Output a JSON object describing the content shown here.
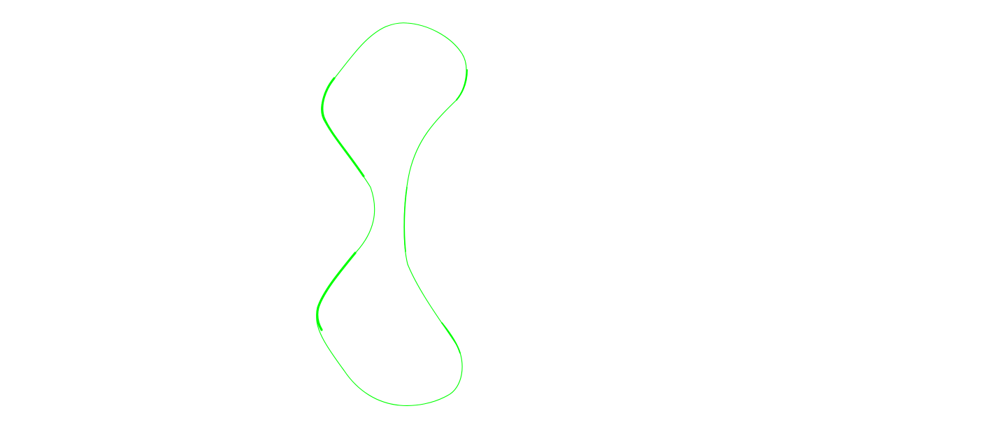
{
  "canvas": {
    "background": "#ffffff"
  },
  "shape": {
    "kind": "closed-curve-outline",
    "stroke_color": "#00ff00",
    "fill": "none"
  }
}
